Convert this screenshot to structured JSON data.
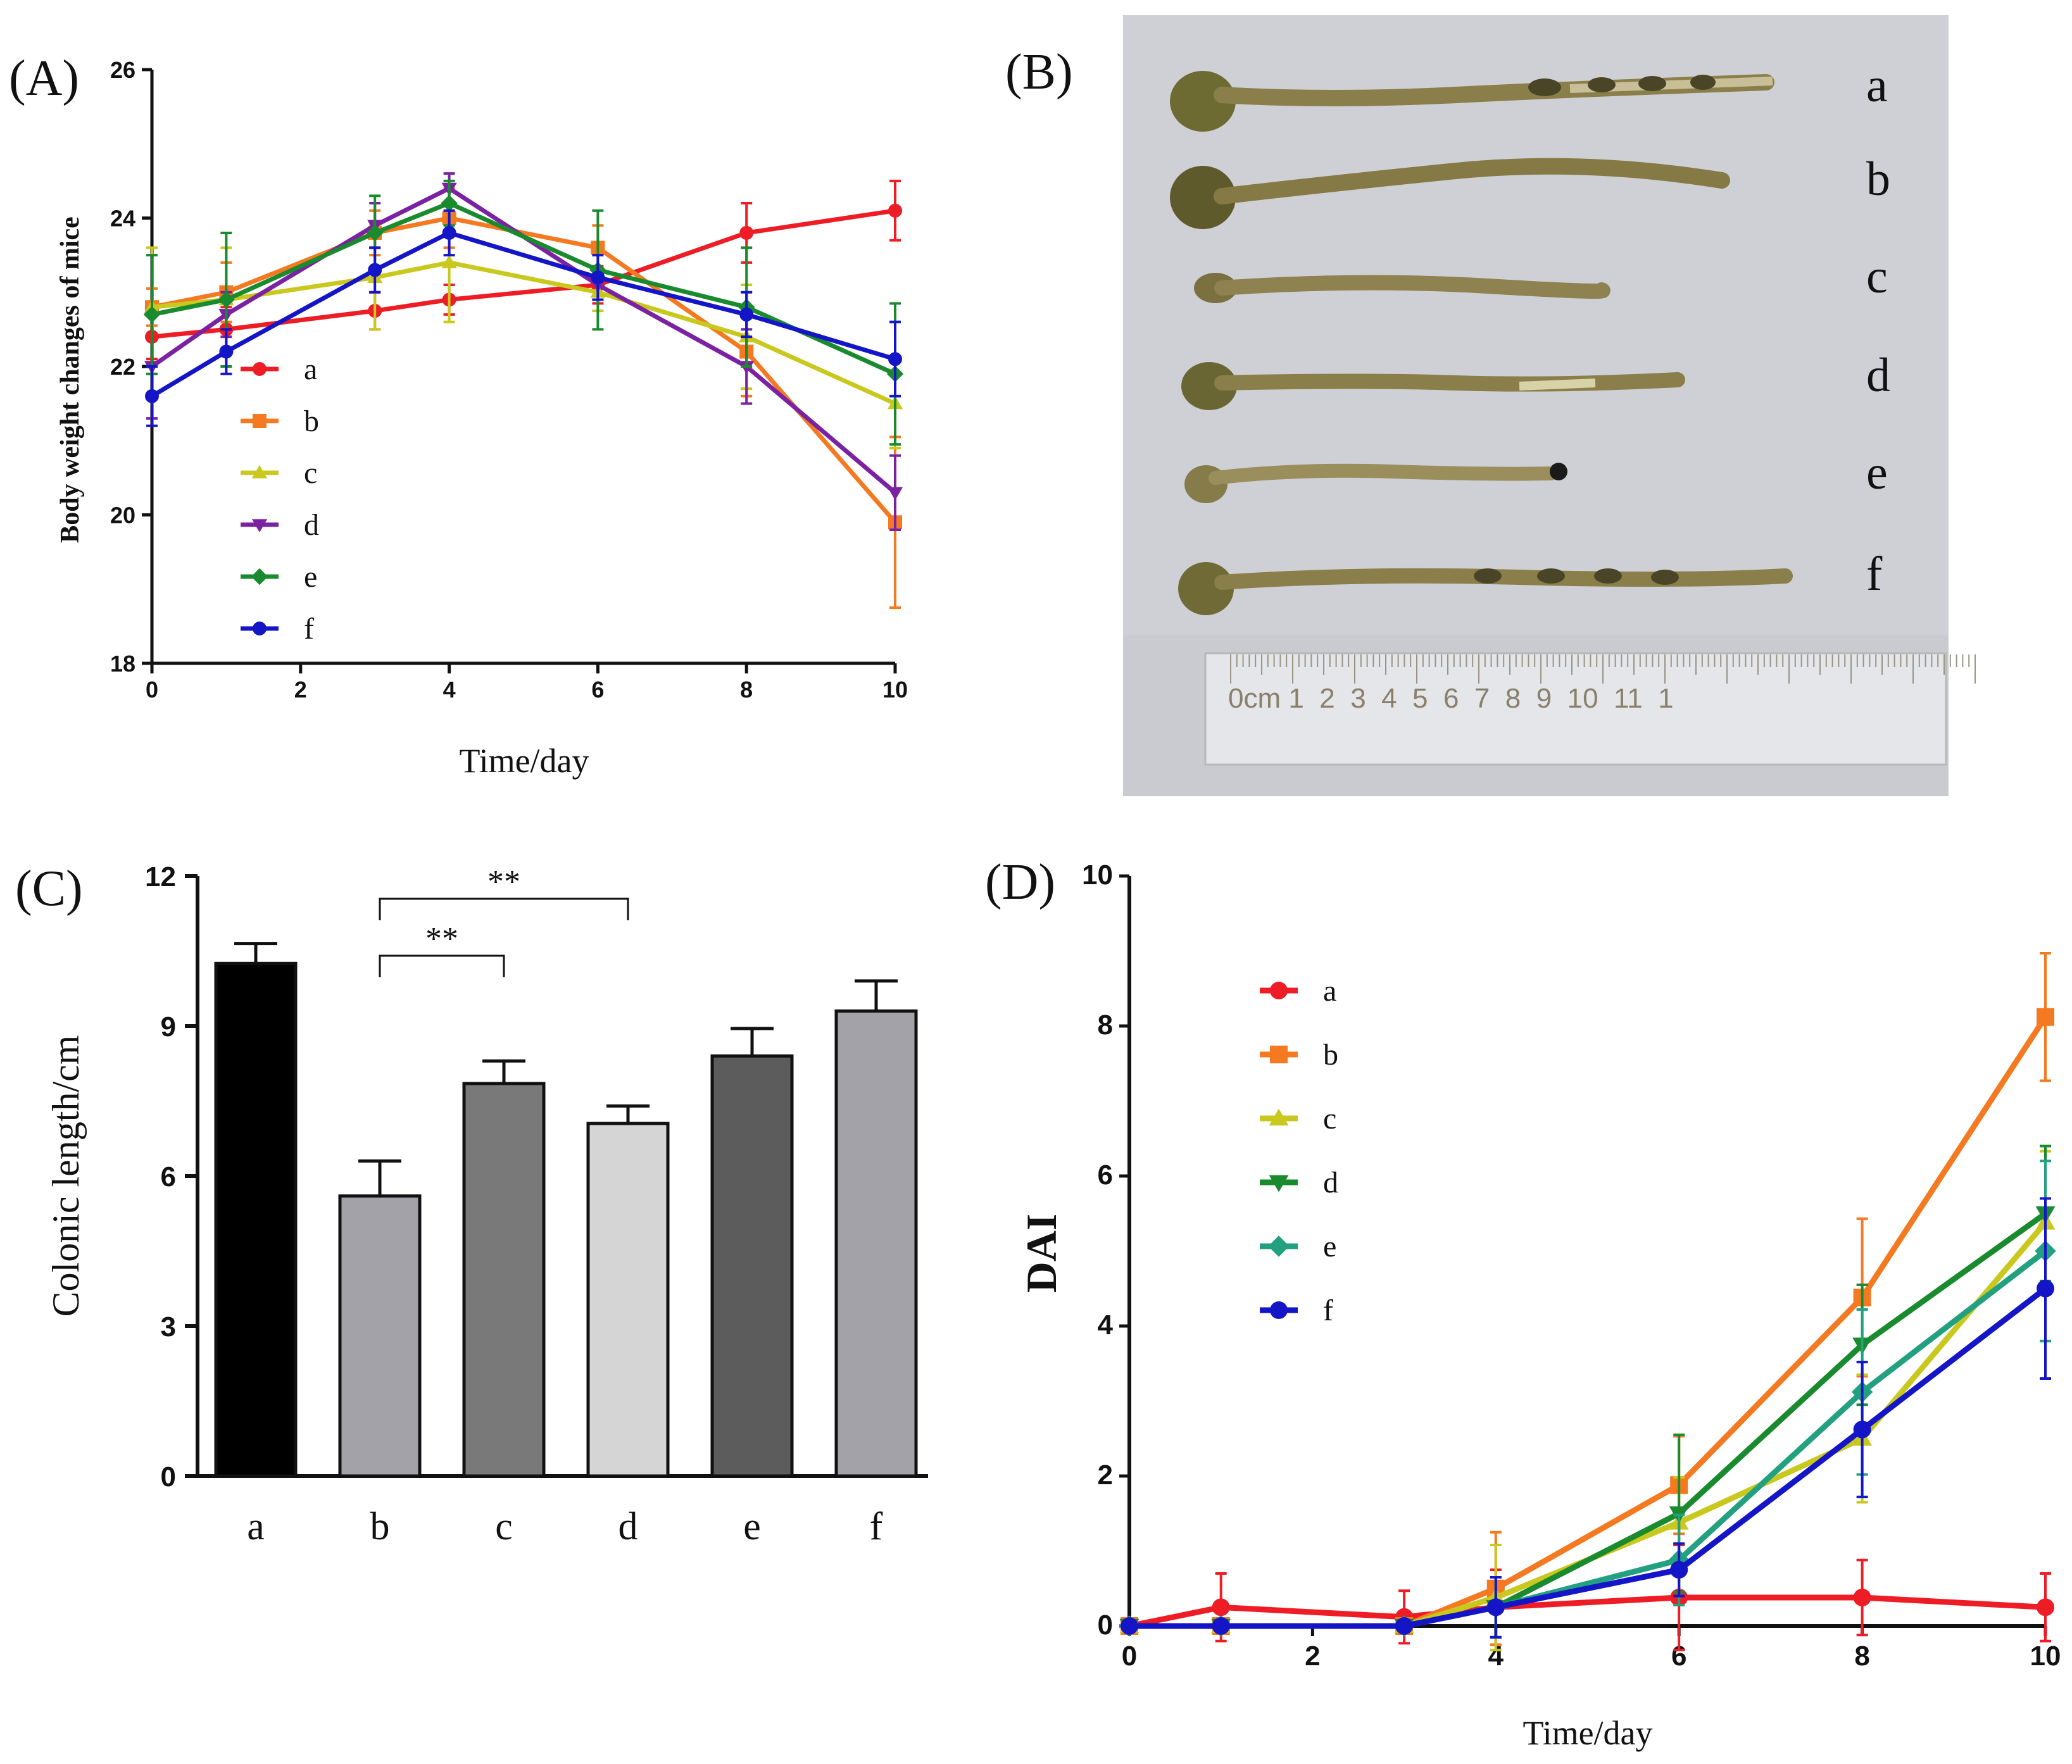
{
  "panels": {
    "A": "(A)",
    "B": "(B)",
    "C": "(C)",
    "D": "(D)"
  },
  "photo_labels": [
    "a",
    "b",
    "c",
    "d",
    "e",
    "f"
  ],
  "ruler_text": "0cm 1  2  3  4  5  6  7  8  9  10  11  1",
  "chart_data": [
    {
      "id": "A",
      "type": "line",
      "title": "",
      "xlabel": "Time/day",
      "ylabel": "Body weight changes of mice",
      "xlim": [
        0,
        10
      ],
      "ylim": [
        18,
        26
      ],
      "xticks": [
        0,
        2,
        4,
        6,
        8,
        10
      ],
      "yticks": [
        18,
        20,
        22,
        24,
        26
      ],
      "x": [
        0,
        1,
        3,
        4,
        6,
        8,
        10
      ],
      "series": [
        {
          "name": "a",
          "color": "#ee1c25",
          "marker": "circle",
          "values": [
            22.4,
            22.5,
            22.75,
            22.9,
            23.1,
            23.8,
            24.1
          ],
          "errors": [
            0.3,
            0.3,
            0.25,
            0.2,
            0.25,
            0.4,
            0.4
          ]
        },
        {
          "name": "b",
          "color": "#f47920",
          "marker": "square",
          "values": [
            22.8,
            23.0,
            23.8,
            24.0,
            23.6,
            22.2,
            19.9
          ],
          "errors": [
            0.25,
            0.4,
            0.3,
            0.4,
            0.3,
            0.6,
            1.15
          ]
        },
        {
          "name": "c",
          "color": "#c8c81e",
          "marker": "triangle-up",
          "values": [
            22.8,
            22.9,
            23.2,
            23.4,
            23.0,
            22.4,
            21.5
          ],
          "errors": [
            0.8,
            0.7,
            0.7,
            0.8,
            0.25,
            0.7,
            0.6
          ]
        },
        {
          "name": "d",
          "color": "#7b22a3",
          "marker": "triangle-down",
          "values": [
            22.0,
            22.7,
            23.9,
            24.4,
            23.1,
            22.0,
            20.3
          ],
          "errors": [
            0.7,
            0.3,
            0.3,
            0.2,
            0.2,
            0.5,
            0.5
          ]
        },
        {
          "name": "e",
          "color": "#1a8a2e",
          "marker": "diamond",
          "values": [
            22.7,
            22.9,
            23.8,
            24.2,
            23.3,
            22.8,
            21.9
          ],
          "errors": [
            0.8,
            0.9,
            0.5,
            0.3,
            0.8,
            0.8,
            0.95
          ]
        },
        {
          "name": "f",
          "color": "#1515c8",
          "marker": "circle",
          "values": [
            21.6,
            22.2,
            23.3,
            23.8,
            23.2,
            22.7,
            22.1
          ],
          "errors": [
            0.4,
            0.3,
            0.3,
            0.3,
            0.3,
            0.3,
            0.5
          ]
        }
      ],
      "legend": "upper-left"
    },
    {
      "id": "C",
      "type": "bar",
      "title": "",
      "xlabel": "",
      "ylabel": "Colonic length/cm",
      "ylim": [
        0,
        12
      ],
      "yticks": [
        0,
        3,
        6,
        9,
        12
      ],
      "categories": [
        "a",
        "b",
        "c",
        "d",
        "e",
        "f"
      ],
      "values": [
        10.25,
        5.6,
        7.85,
        7.05,
        8.4,
        9.3
      ],
      "errors": [
        0.4,
        0.7,
        0.45,
        0.35,
        0.55,
        0.6
      ],
      "bar_colors": [
        "#000000",
        "#a2a2a8",
        "#797979",
        "#d5d5d5",
        "#5c5c5c",
        "#a2a2a8"
      ],
      "annotations": [
        {
          "from": "b",
          "to": "c",
          "text": "**"
        },
        {
          "from": "b",
          "to": "d",
          "text": "**"
        }
      ]
    },
    {
      "id": "D",
      "type": "line",
      "title": "",
      "xlabel": "Time/day",
      "ylabel": "DAI",
      "xlim": [
        0,
        10
      ],
      "ylim": [
        0,
        10
      ],
      "xticks": [
        0,
        2,
        4,
        6,
        8,
        10
      ],
      "yticks": [
        0,
        2,
        4,
        6,
        8,
        10
      ],
      "x": [
        0,
        1,
        3,
        4,
        6,
        8,
        10
      ],
      "series": [
        {
          "name": "a",
          "color": "#ee1c25",
          "marker": "circle",
          "values": [
            0.0,
            0.25,
            0.12,
            0.25,
            0.38,
            0.38,
            0.25
          ],
          "errors": [
            0,
            0.45,
            0.35,
            0.5,
            0.7,
            0.5,
            0.45
          ]
        },
        {
          "name": "b",
          "color": "#f47920",
          "marker": "square",
          "values": [
            0.0,
            0.0,
            0.0,
            0.5,
            1.88,
            4.38,
            8.12
          ],
          "errors": [
            0,
            0,
            0,
            0.75,
            0.65,
            1.05,
            0.85
          ]
        },
        {
          "name": "c",
          "color": "#c8c81e",
          "marker": "triangle-up",
          "values": [
            0.0,
            0.0,
            0.0,
            0.38,
            1.38,
            2.5,
            5.38
          ],
          "errors": [
            0,
            0,
            0,
            0.7,
            0.6,
            0.85,
            0.95
          ]
        },
        {
          "name": "d",
          "color": "#1a8a2e",
          "marker": "triangle-down",
          "values": [
            0.0,
            0.0,
            0.0,
            0.25,
            1.5,
            3.75,
            5.5
          ],
          "errors": [
            0,
            0,
            0,
            0.4,
            1.05,
            0.8,
            0.9
          ]
        },
        {
          "name": "e",
          "color": "#23a080",
          "marker": "diamond",
          "values": [
            0.0,
            0.0,
            0.0,
            0.25,
            0.88,
            3.12,
            5.0
          ],
          "errors": [
            0,
            0,
            0,
            0.4,
            0.6,
            1.1,
            1.2
          ]
        },
        {
          "name": "f",
          "color": "#1515c8",
          "marker": "circle",
          "values": [
            0.0,
            0.0,
            0.0,
            0.25,
            0.75,
            2.62,
            4.5
          ],
          "errors": [
            0,
            0,
            0,
            0.4,
            0.35,
            0.9,
            1.2
          ]
        }
      ],
      "legend": "upper-left"
    }
  ]
}
